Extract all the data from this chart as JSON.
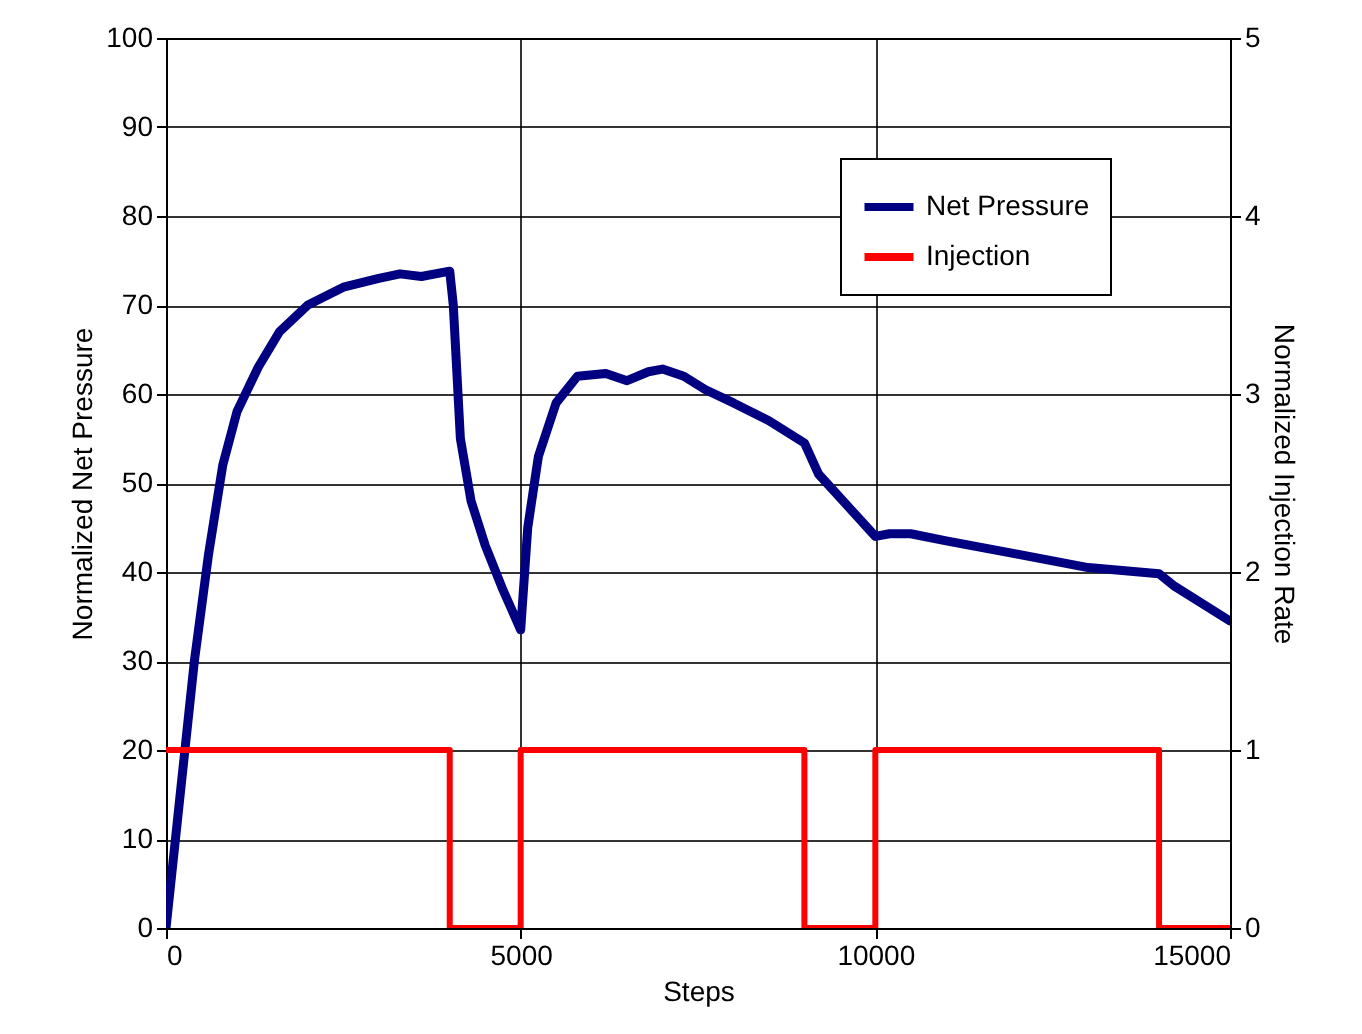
{
  "chart_data": {
    "type": "line",
    "xlabel": "Steps",
    "ylabel": "Normalized Net Pressure",
    "y2label": "Normalized Injection Rate",
    "xlim": [
      0,
      15000
    ],
    "xticks": [
      0,
      5000,
      10000,
      15000
    ],
    "ylim": [
      0,
      100
    ],
    "yticks": [
      0,
      10,
      20,
      30,
      40,
      50,
      60,
      70,
      80,
      90,
      100
    ],
    "y2lim": [
      0,
      5
    ],
    "y2ticks": [
      0,
      1,
      2,
      3,
      4,
      5
    ],
    "grid": true,
    "legend": "top right",
    "series": [
      {
        "name": "Net Pressure",
        "color": "#000080",
        "x": [
          0,
          200,
          400,
          600,
          800,
          1000,
          1300,
          1600,
          2000,
          2500,
          3000,
          3300,
          3600,
          4000,
          4050,
          4150,
          4300,
          4500,
          4750,
          5000,
          5100,
          5250,
          5500,
          5800,
          6200,
          6500,
          6800,
          7000,
          7300,
          7600,
          8000,
          8500,
          9000,
          9200,
          9600,
          10000,
          10200,
          10500,
          11000,
          12000,
          13000,
          14000,
          14200,
          15000
        ],
        "values": [
          0,
          15,
          30,
          42,
          52,
          58,
          63,
          67,
          70,
          72,
          73,
          73.5,
          73.2,
          73.8,
          70,
          55,
          48,
          43,
          38,
          33.5,
          45,
          53,
          59,
          62,
          62.3,
          61.5,
          62.5,
          62.8,
          62,
          60.5,
          59,
          57,
          54.5,
          51,
          47.5,
          44,
          44.3,
          44.3,
          43.5,
          42,
          40.5,
          39.8,
          38.5,
          34.5
        ]
      },
      {
        "name": "Injection",
        "type": "step",
        "axis": "y2",
        "color": "#ff0000",
        "x": [
          0,
          4000,
          5000,
          9000,
          10000,
          14000,
          15000
        ],
        "values": [
          1,
          0,
          1,
          0,
          1,
          0,
          0
        ]
      }
    ]
  }
}
